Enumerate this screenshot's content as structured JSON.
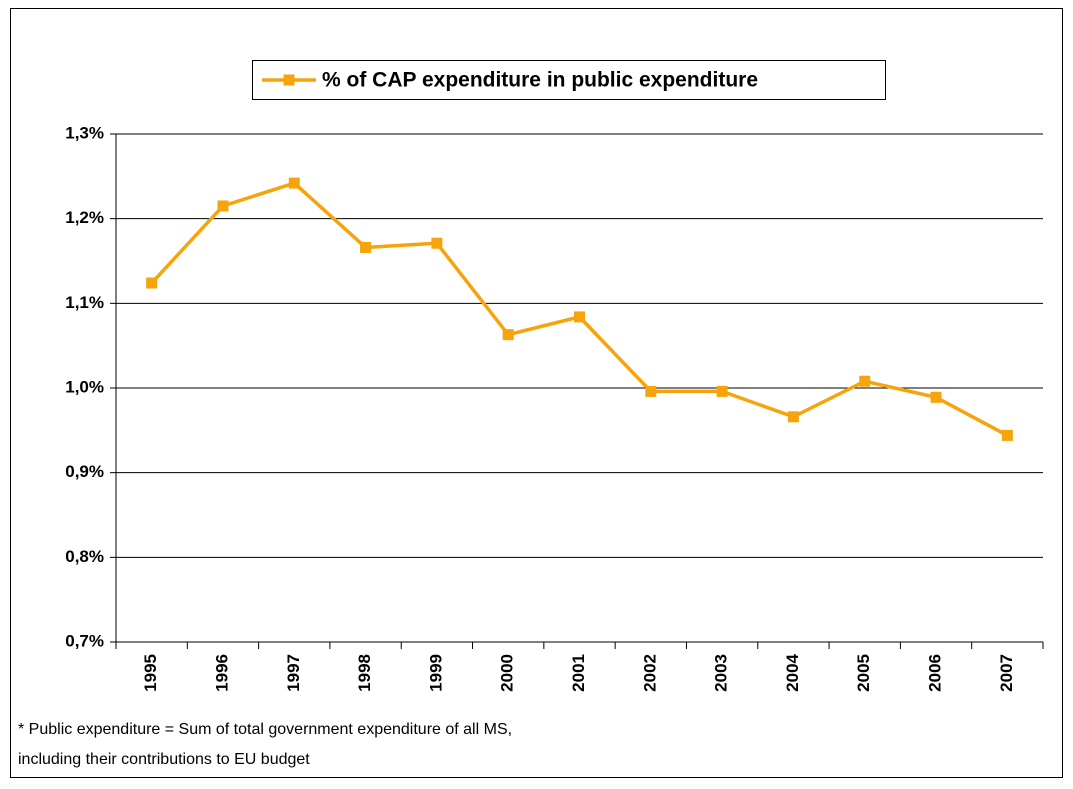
{
  "chart_data": {
    "type": "line",
    "categories": [
      "1995",
      "1996",
      "1997",
      "1998",
      "1999",
      "2000",
      "2001",
      "2002",
      "2003",
      "2004",
      "2005",
      "2006",
      "2007"
    ],
    "series": [
      {
        "name": "% of CAP expenditure in public expenditure",
        "color": "#f7a30b",
        "values": [
          1.124,
          1.215,
          1.242,
          1.166,
          1.171,
          1.063,
          1.084,
          0.996,
          0.996,
          0.966,
          1.008,
          0.989,
          0.944
        ]
      }
    ],
    "ylim": [
      0.7,
      1.3
    ],
    "yticks": [
      {
        "value": 0.7,
        "label": "0,7%"
      },
      {
        "value": 0.8,
        "label": "0,8%"
      },
      {
        "value": 0.9,
        "label": "0,9%"
      },
      {
        "value": 1.0,
        "label": "1,0%"
      },
      {
        "value": 1.1,
        "label": "1,1%"
      },
      {
        "value": 1.2,
        "label": "1,2%"
      },
      {
        "value": 1.3,
        "label": "1,3%"
      }
    ],
    "grid": true,
    "legend": "top",
    "annotations": [
      "* Public expenditure = Sum of total government expenditure of all MS,",
      "including their contributions to EU budget"
    ]
  }
}
